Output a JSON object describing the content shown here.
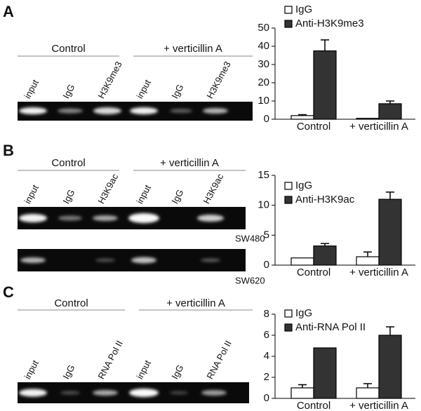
{
  "panels": [
    {
      "letter": "A",
      "groups": [
        "Control",
        "+ verticillin A"
      ],
      "lanes": [
        "input",
        "IgG",
        "H3K9me3",
        "input",
        "IgG",
        "H3K9me3"
      ],
      "cell_lines": []
    },
    {
      "letter": "B",
      "groups": [
        "Control",
        "+ verticillin A"
      ],
      "lanes": [
        "input",
        "IgG",
        "H3K9ac",
        "input",
        "IgG",
        "H3K9ac"
      ],
      "cell_lines": [
        "SW480",
        "SW620"
      ]
    },
    {
      "letter": "C",
      "groups": [
        "Control",
        "+ verticillin A"
      ],
      "lanes": [
        "input",
        "IgG",
        "RNA Pol II",
        "input",
        "IgG",
        "RNA Pol II"
      ],
      "cell_lines": []
    }
  ],
  "chart_data": [
    {
      "type": "bar",
      "categories": [
        "Control",
        "+ verticillin A"
      ],
      "series": [
        {
          "name": "IgG",
          "color": "#ffffff",
          "values": [
            2,
            0.5
          ],
          "errors": [
            0.5,
            null
          ]
        },
        {
          "name": "Anti-H3K9me3",
          "color": "#333333",
          "values": [
            37.5,
            8.5
          ],
          "errors": [
            6,
            1.5
          ]
        }
      ],
      "ylim": [
        0,
        50
      ],
      "yticks": [
        0,
        10,
        20,
        30,
        40,
        50
      ]
    },
    {
      "type": "bar",
      "categories": [
        "Control",
        "+ verticillin A"
      ],
      "series": [
        {
          "name": "IgG",
          "color": "#ffffff",
          "values": [
            1.2,
            1.4
          ],
          "errors": [
            null,
            0.8
          ]
        },
        {
          "name": "Anti-H3K9ac",
          "color": "#333333",
          "values": [
            3.2,
            11
          ],
          "errors": [
            0.4,
            1.2
          ]
        }
      ],
      "ylim": [
        0,
        15
      ],
      "yticks": [
        0,
        5,
        10,
        15
      ]
    },
    {
      "type": "bar",
      "categories": [
        "Control",
        "+ verticillin A"
      ],
      "series": [
        {
          "name": "IgG",
          "color": "#ffffff",
          "values": [
            1.0,
            1.0
          ],
          "errors": [
            0.3,
            0.4
          ]
        },
        {
          "name": "Anti-RNA Pol II",
          "color": "#333333",
          "values": [
            4.8,
            6.0
          ],
          "errors": [
            null,
            0.8
          ]
        }
      ],
      "ylim": [
        0,
        8
      ],
      "yticks": [
        0,
        2,
        4,
        6,
        8
      ]
    }
  ]
}
